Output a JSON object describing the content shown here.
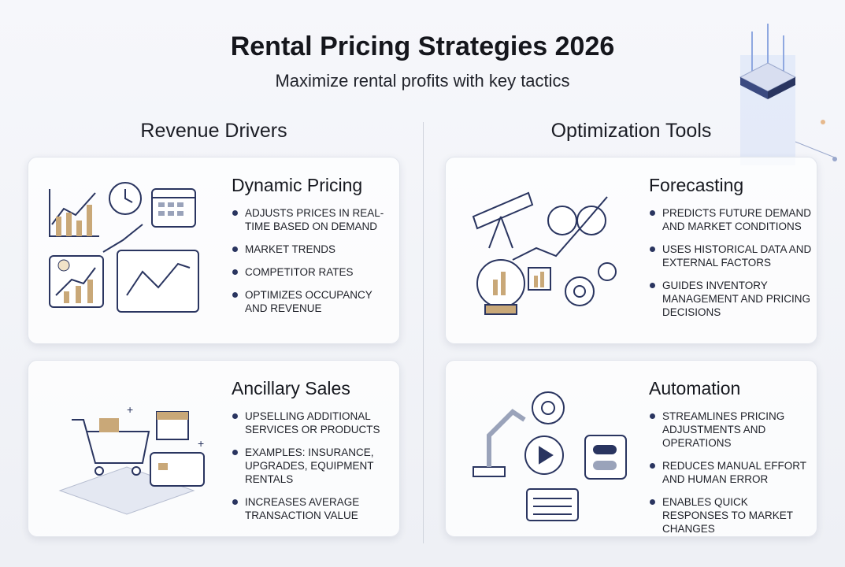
{
  "header": {
    "title": "Rental Pricing Strategies 2026",
    "subtitle": "Maximize rental profits with key tactics"
  },
  "sections": [
    {
      "heading": "Revenue Drivers"
    },
    {
      "heading": "Optimization Tools"
    }
  ],
  "cards": [
    {
      "title": "Dynamic Pricing",
      "icon": "pricing-charts-icon",
      "bullets": [
        "Adjusts prices in real-time based on demand",
        "Market trends",
        "Competitor rates",
        "Optimizes occupancy and revenue"
      ]
    },
    {
      "title": "Forecasting",
      "icon": "telescope-binoculars-icon",
      "bullets": [
        "Predicts future demand and market conditions",
        "Uses historical data and external factors",
        "Guides inventory management and pricing decisions"
      ]
    },
    {
      "title": "Ancillary Sales",
      "icon": "shopping-cart-gift-icon",
      "bullets": [
        "Upselling additional services or products",
        "Examples: insurance, upgrades, equipment rentals",
        "Increases average transaction value"
      ]
    },
    {
      "title": "Automation",
      "icon": "robot-arm-gears-icon",
      "bullets": [
        "Streamlines pricing adjustments and operations",
        "Reduces manual effort and human error",
        "Enables quick responses to market changes"
      ]
    }
  ],
  "colors": {
    "accent": "#2a3560",
    "gold": "#c9a878",
    "blue": "#6f8fd6"
  }
}
